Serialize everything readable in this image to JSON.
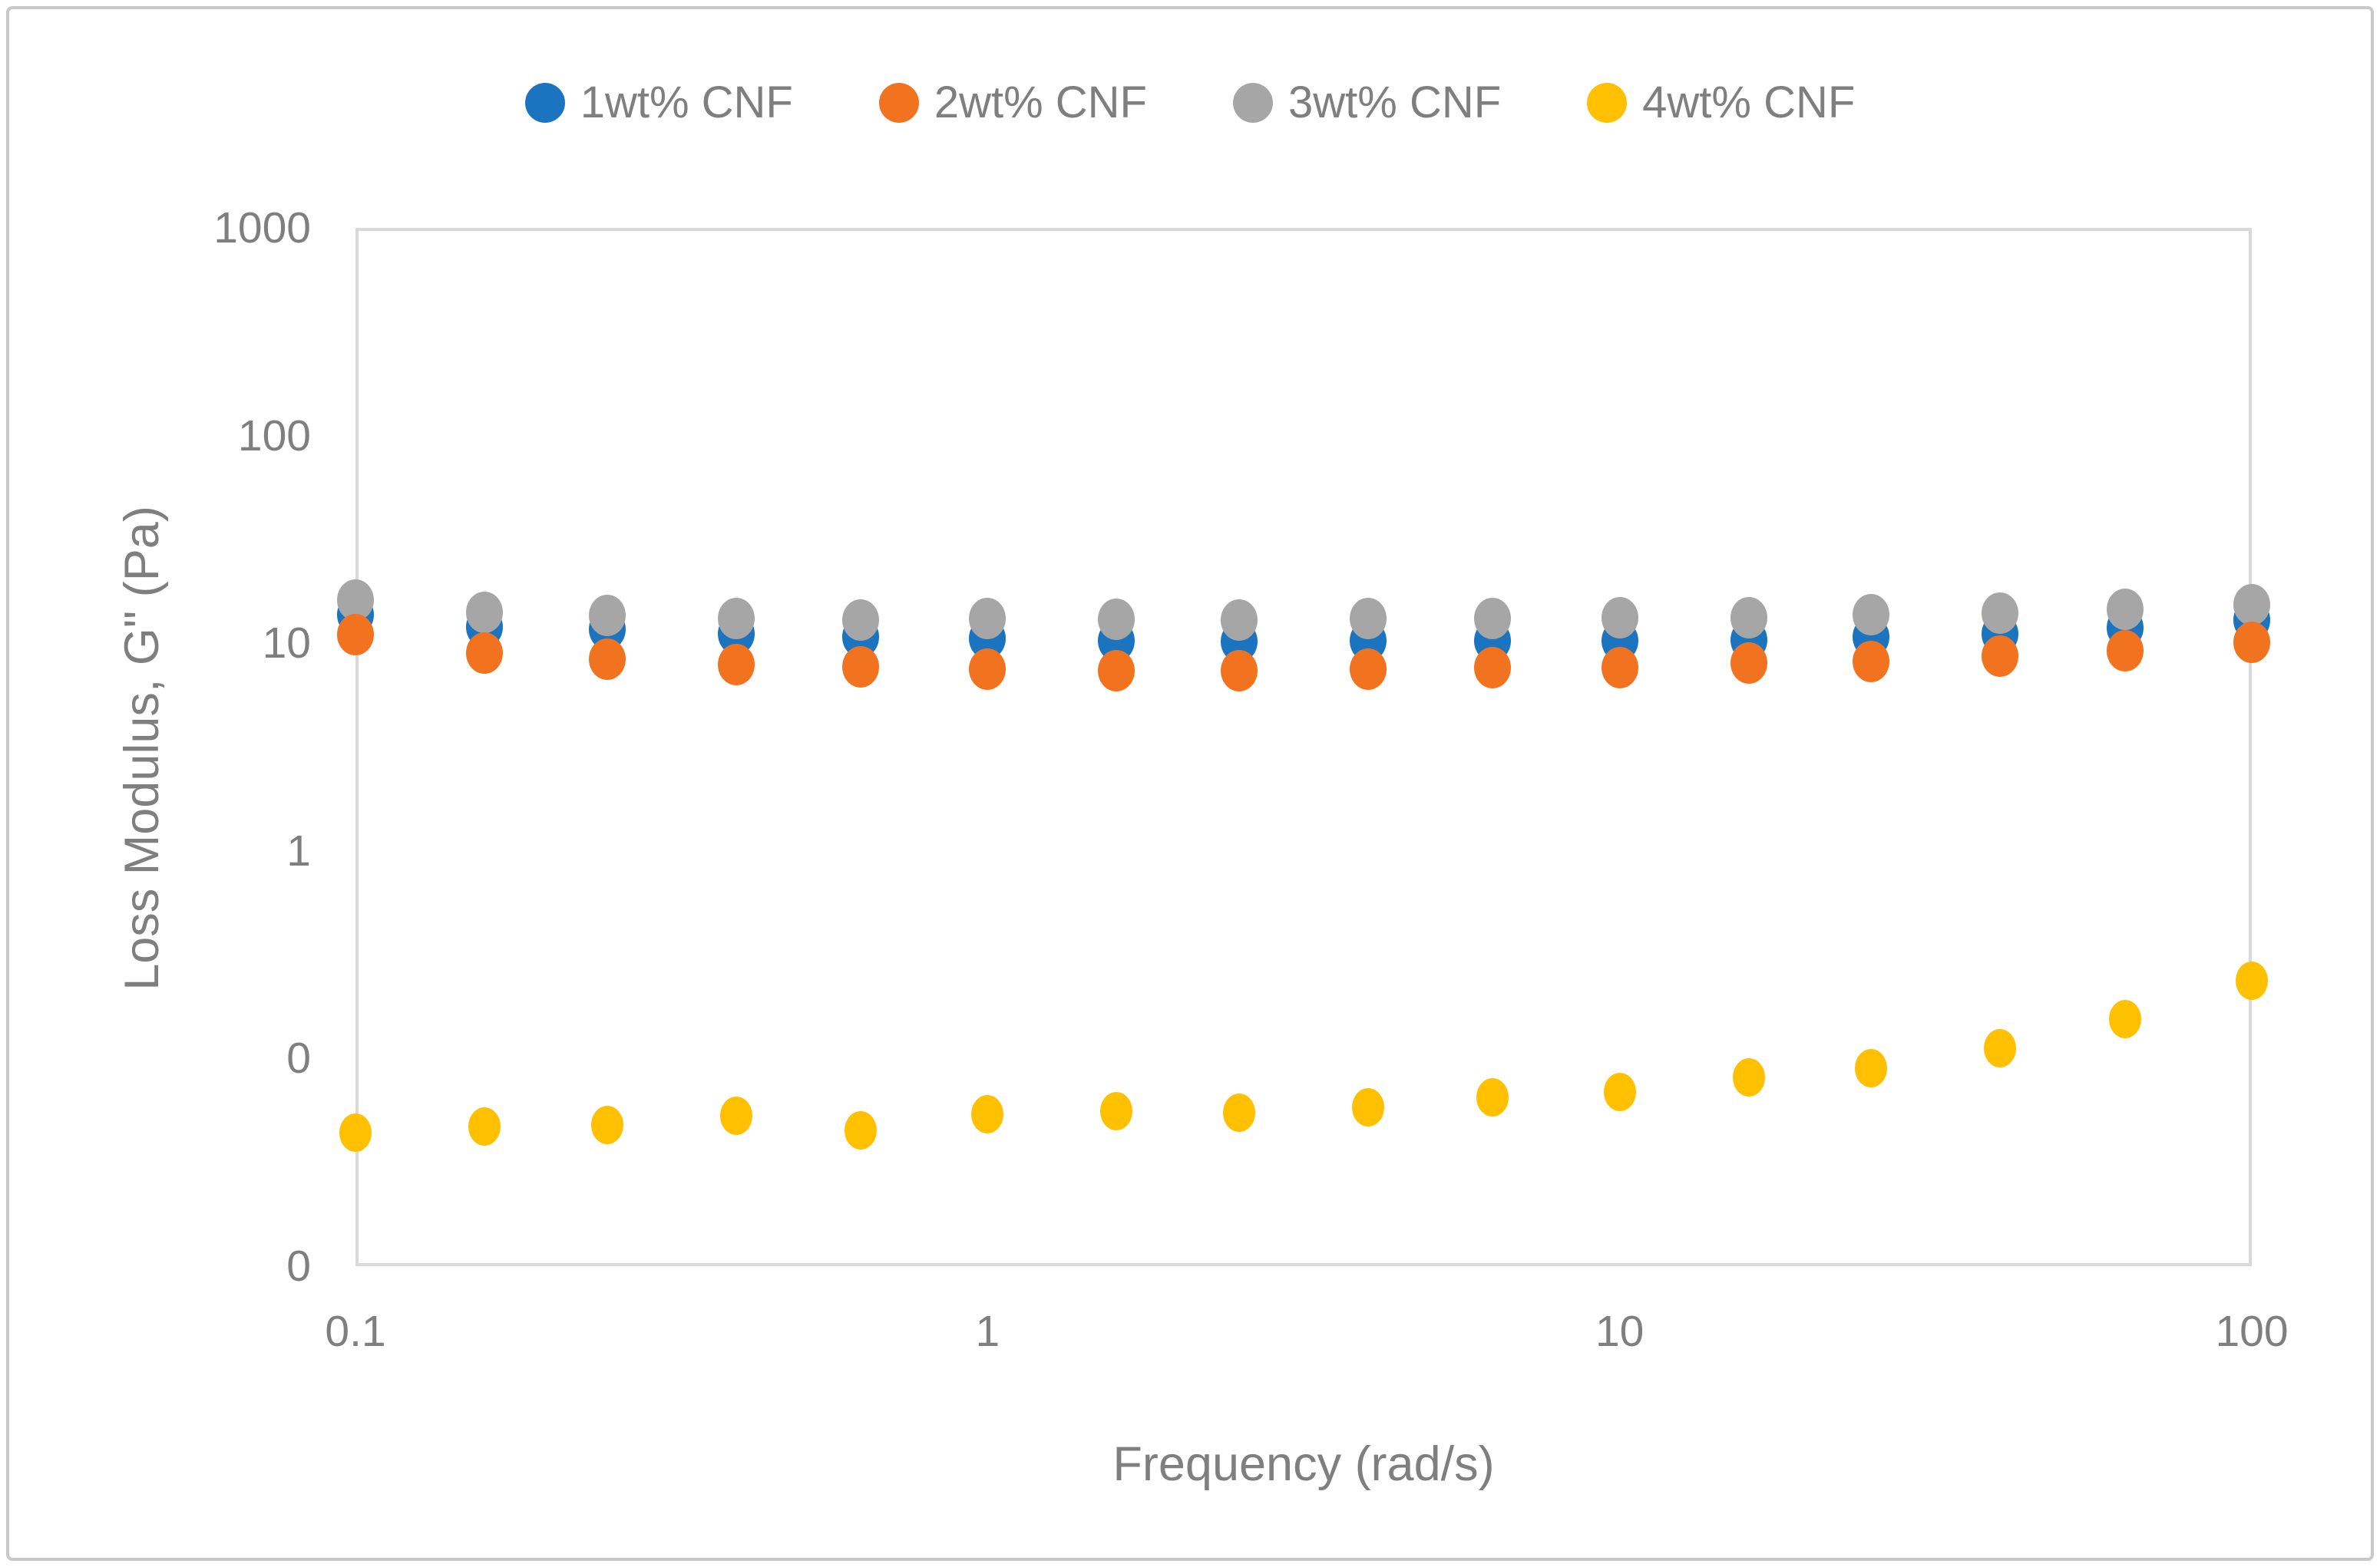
{
  "figure": {
    "background": "#FFFFFF",
    "border_color": "#C9C9C9",
    "text_color": "#7F7F7F",
    "grid_color": "#D9D9D9"
  },
  "chart_data": {
    "type": "scatter",
    "title": "",
    "xlabel": "Frequency (rad/s)",
    "ylabel": "Loss Modulus, G\" (Pa)",
    "x_scale": "log",
    "y_scale": "log",
    "xlim": [
      0.1,
      100
    ],
    "ylim": [
      0.01,
      1000
    ],
    "grid": true,
    "legend_position": "top-center",
    "x_tick_values": [
      0.1,
      1,
      10,
      100
    ],
    "x_tick_labels": [
      "0.1",
      "1",
      "10",
      "100"
    ],
    "y_tick_values": [
      1000,
      100,
      10,
      1,
      0.1,
      0.01
    ],
    "y_tick_labels": [
      "1000",
      "100",
      "10",
      "1",
      "0",
      "0"
    ],
    "x_gridline_values": [
      1,
      10
    ],
    "y_gridline_values": [
      100,
      10,
      1,
      0.1
    ],
    "x": [
      0.1,
      0.16,
      0.25,
      0.4,
      0.63,
      1,
      1.6,
      2.5,
      4,
      6.3,
      10,
      16,
      25,
      40,
      63,
      100
    ],
    "series": [
      {
        "name": "1wt% CNF",
        "color": "#1B74BF",
        "values": [
          13.7,
          12.0,
          11.7,
          11.1,
          10.7,
          10.5,
          10.3,
          10.2,
          10.3,
          10.3,
          10.3,
          10.4,
          10.7,
          11.1,
          11.9,
          12.9
        ]
      },
      {
        "name": "2wt% CNF",
        "color": "#F2731F",
        "values": [
          11.0,
          9.0,
          8.4,
          7.9,
          7.7,
          7.5,
          7.4,
          7.4,
          7.5,
          7.6,
          7.6,
          8.0,
          8.2,
          8.7,
          9.2,
          10.1
        ]
      },
      {
        "name": "3wt% CNF",
        "color": "#A6A6A6",
        "values": [
          16.2,
          14.1,
          13.6,
          13.1,
          12.9,
          13.1,
          13.0,
          12.9,
          13.1,
          13.2,
          13.3,
          13.3,
          13.7,
          14.0,
          14.6,
          15.3
        ]
      },
      {
        "name": "4wt% CNF",
        "color": "#FFC000",
        "values": [
          0.044,
          0.047,
          0.048,
          0.053,
          0.045,
          0.054,
          0.056,
          0.055,
          0.058,
          0.065,
          0.069,
          0.081,
          0.09,
          0.112,
          0.155,
          0.236
        ]
      }
    ]
  }
}
